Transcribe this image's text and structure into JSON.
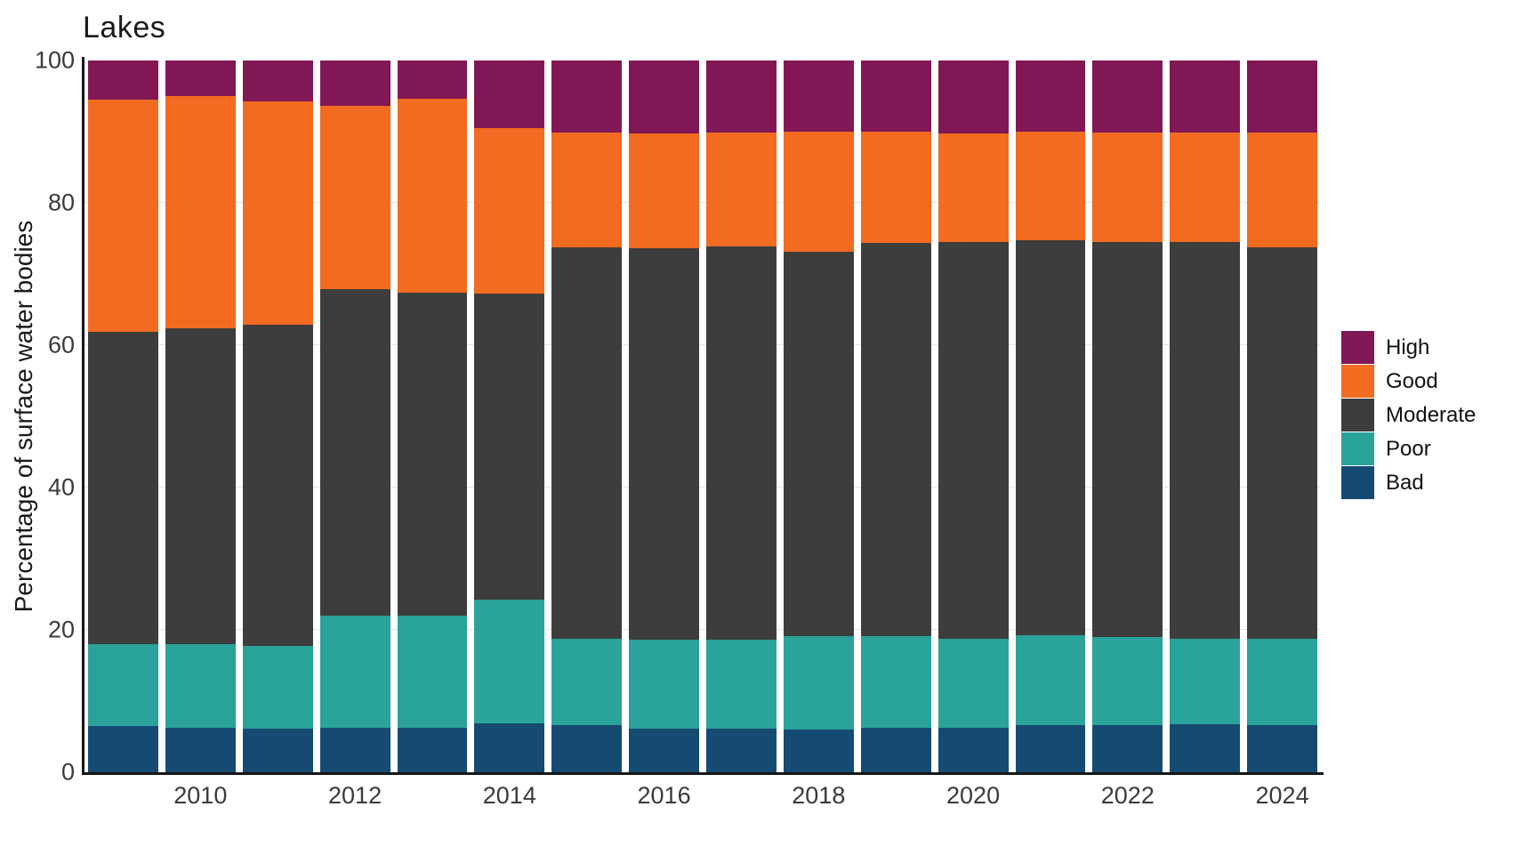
{
  "title": "Lakes",
  "chart_data": {
    "type": "bar",
    "stacked": true,
    "title": "Lakes",
    "xlabel": "",
    "ylabel": "Percentage of surface water bodies",
    "ylim": [
      0,
      100
    ],
    "yticks": [
      0,
      20,
      40,
      60,
      80,
      100
    ],
    "grid": "horizontal-faint",
    "legend_position": "right",
    "categories": [
      2009,
      2010,
      2011,
      2012,
      2013,
      2014,
      2015,
      2016,
      2017,
      2018,
      2019,
      2020,
      2021,
      2022,
      2023,
      2024
    ],
    "xtick_labels": [
      "2010",
      "2012",
      "2014",
      "2016",
      "2018",
      "2020",
      "2022",
      "2024"
    ],
    "series": [
      {
        "name": "High",
        "color": "#821755",
        "values": [
          5.5,
          5.0,
          5.7,
          6.4,
          5.4,
          9.5,
          10.1,
          10.3,
          10.1,
          10.0,
          10.0,
          10.2,
          10.0,
          10.1,
          10.1,
          10.1
        ]
      },
      {
        "name": "Good",
        "color": "#f26b21",
        "values": [
          32.6,
          32.6,
          31.4,
          25.7,
          27.2,
          23.2,
          16.2,
          16.1,
          16.0,
          16.9,
          15.6,
          15.3,
          15.3,
          15.4,
          15.4,
          16.1
        ]
      },
      {
        "name": "Moderate",
        "color": "#3d3d3d",
        "values": [
          43.9,
          44.4,
          45.2,
          45.9,
          45.4,
          43.1,
          54.9,
          55.0,
          55.3,
          54.0,
          55.3,
          55.7,
          55.5,
          55.5,
          55.7,
          55.1
        ]
      },
      {
        "name": "Poor",
        "color": "#2aa39a",
        "values": [
          11.5,
          11.8,
          11.6,
          15.8,
          15.7,
          17.3,
          12.2,
          12.5,
          12.5,
          13.1,
          12.9,
          12.6,
          12.6,
          12.4,
          12.1,
          12.1
        ]
      },
      {
        "name": "Bad",
        "color": "#154a72",
        "values": [
          6.5,
          6.2,
          6.1,
          6.2,
          6.3,
          6.9,
          6.6,
          6.1,
          6.1,
          6.0,
          6.2,
          6.2,
          6.6,
          6.6,
          6.7,
          6.6
        ]
      }
    ],
    "legend_items": [
      "High",
      "Good",
      "Moderate",
      "Poor",
      "Bad"
    ],
    "axis_color": "#161616",
    "gridline_color": "#e4e4e4"
  }
}
